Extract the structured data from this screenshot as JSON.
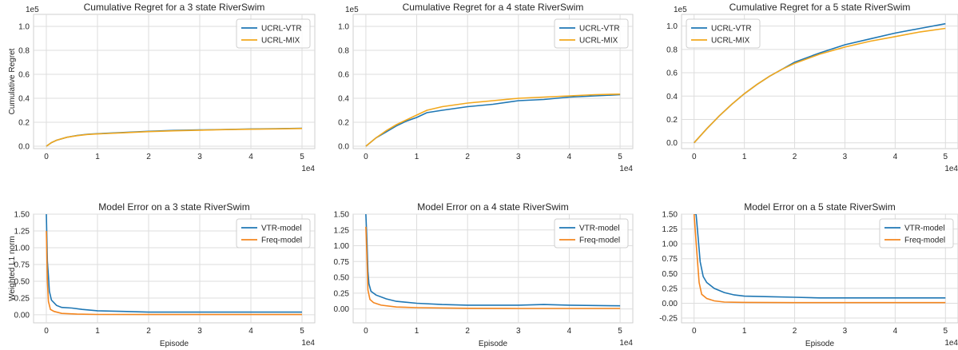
{
  "colors": {
    "series_a": "#1f77b4",
    "series_b_top": "#f2a81d",
    "series_b_bottom": "#f4861f",
    "grid": "#dddddd",
    "frame": "#cfcfcf",
    "text": "#262626"
  },
  "chart_data": [
    {
      "type": "line",
      "title": "Cumulative Regret for a 3 state RiverSwim",
      "xlabel": "",
      "ylabel": "Cumulative Regret",
      "x_multiplier": "1e4",
      "y_multiplier": "1e5",
      "xlim": [
        -0.25,
        5.25
      ],
      "ylim": [
        -0.02,
        1.1
      ],
      "xticks": [
        "0",
        "1",
        "2",
        "3",
        "4",
        "5"
      ],
      "yticks": [
        "0.0",
        "0.2",
        "0.4",
        "0.6",
        "0.8",
        "1.0"
      ],
      "legend_position": "top-right",
      "series": [
        {
          "name": "UCRL-VTR",
          "color": "#1f77b4",
          "points": [
            [
              0,
              0
            ],
            [
              0.1,
              0.03
            ],
            [
              0.2,
              0.05
            ],
            [
              0.4,
              0.075
            ],
            [
              0.6,
              0.09
            ],
            [
              0.8,
              0.1
            ],
            [
              1,
              0.105
            ],
            [
              1.5,
              0.115
            ],
            [
              2,
              0.125
            ],
            [
              2.5,
              0.132
            ],
            [
              3,
              0.136
            ],
            [
              3.5,
              0.14
            ],
            [
              4,
              0.144
            ],
            [
              4.5,
              0.147
            ],
            [
              5,
              0.15
            ]
          ]
        },
        {
          "name": "UCRL-MIX",
          "color": "#f2a81d",
          "points": [
            [
              0,
              0
            ],
            [
              0.1,
              0.03
            ],
            [
              0.2,
              0.05
            ],
            [
              0.4,
              0.075
            ],
            [
              0.6,
              0.088
            ],
            [
              0.8,
              0.098
            ],
            [
              1,
              0.103
            ],
            [
              1.5,
              0.112
            ],
            [
              2,
              0.122
            ],
            [
              2.5,
              0.129
            ],
            [
              3,
              0.134
            ],
            [
              3.5,
              0.139
            ],
            [
              4,
              0.142
            ],
            [
              4.5,
              0.145
            ],
            [
              5,
              0.148
            ]
          ]
        }
      ]
    },
    {
      "type": "line",
      "title": "Cumulative Regret for a 4 state RiverSwim",
      "xlabel": "",
      "ylabel": "",
      "x_multiplier": "1e4",
      "y_multiplier": "1e5",
      "xlim": [
        -0.25,
        5.25
      ],
      "ylim": [
        -0.02,
        1.1
      ],
      "xticks": [
        "0",
        "1",
        "2",
        "3",
        "4",
        "5"
      ],
      "yticks": [
        "0.0",
        "0.2",
        "0.4",
        "0.6",
        "0.8",
        "1.0"
      ],
      "legend_position": "top-right",
      "series": [
        {
          "name": "UCRL-VTR",
          "color": "#1f77b4",
          "points": [
            [
              0,
              0
            ],
            [
              0.2,
              0.07
            ],
            [
              0.4,
              0.12
            ],
            [
              0.6,
              0.17
            ],
            [
              0.8,
              0.21
            ],
            [
              1,
              0.24
            ],
            [
              1.2,
              0.28
            ],
            [
              1.5,
              0.3
            ],
            [
              2,
              0.33
            ],
            [
              2.5,
              0.35
            ],
            [
              3,
              0.38
            ],
            [
              3.5,
              0.39
            ],
            [
              4,
              0.41
            ],
            [
              4.5,
              0.42
            ],
            [
              5,
              0.43
            ]
          ]
        },
        {
          "name": "UCRL-MIX",
          "color": "#f2a81d",
          "points": [
            [
              0,
              0
            ],
            [
              0.2,
              0.07
            ],
            [
              0.4,
              0.13
            ],
            [
              0.6,
              0.18
            ],
            [
              0.8,
              0.22
            ],
            [
              1,
              0.26
            ],
            [
              1.2,
              0.3
            ],
            [
              1.5,
              0.33
            ],
            [
              2,
              0.36
            ],
            [
              2.5,
              0.38
            ],
            [
              3,
              0.4
            ],
            [
              3.5,
              0.41
            ],
            [
              4,
              0.42
            ],
            [
              4.5,
              0.43
            ],
            [
              5,
              0.435
            ]
          ]
        }
      ]
    },
    {
      "type": "line",
      "title": "Cumulative Regret for a 5 state RiverSwim",
      "xlabel": "",
      "ylabel": "",
      "x_multiplier": "1e4",
      "y_multiplier": "1e5",
      "xlim": [
        -0.25,
        5.25
      ],
      "ylim": [
        -0.05,
        1.1
      ],
      "xticks": [
        "0",
        "1",
        "2",
        "3",
        "4",
        "5"
      ],
      "yticks": [
        "0.0",
        "0.2",
        "0.4",
        "0.6",
        "0.8",
        "1.0"
      ],
      "legend_position": "top-left",
      "series": [
        {
          "name": "UCRL-VTR",
          "color": "#1f77b4",
          "points": [
            [
              0,
              0
            ],
            [
              0.25,
              0.12
            ],
            [
              0.5,
              0.23
            ],
            [
              0.75,
              0.33
            ],
            [
              1,
              0.42
            ],
            [
              1.25,
              0.5
            ],
            [
              1.5,
              0.57
            ],
            [
              1.75,
              0.63
            ],
            [
              2,
              0.69
            ],
            [
              2.5,
              0.77
            ],
            [
              3,
              0.84
            ],
            [
              3.5,
              0.89
            ],
            [
              4,
              0.94
            ],
            [
              4.5,
              0.98
            ],
            [
              5,
              1.02
            ]
          ]
        },
        {
          "name": "UCRL-MIX",
          "color": "#f2a81d",
          "points": [
            [
              0,
              0
            ],
            [
              0.25,
              0.12
            ],
            [
              0.5,
              0.23
            ],
            [
              0.75,
              0.33
            ],
            [
              1,
              0.42
            ],
            [
              1.25,
              0.5
            ],
            [
              1.5,
              0.57
            ],
            [
              1.75,
              0.63
            ],
            [
              2,
              0.68
            ],
            [
              2.5,
              0.76
            ],
            [
              3,
              0.82
            ],
            [
              3.5,
              0.87
            ],
            [
              4,
              0.91
            ],
            [
              4.5,
              0.95
            ],
            [
              5,
              0.98
            ]
          ]
        }
      ]
    },
    {
      "type": "line",
      "title": "Model Error on a 3 state RiverSwim",
      "xlabel": "Episode",
      "ylabel": "Weighted L1 norm",
      "x_multiplier": "1e4",
      "y_multiplier": "",
      "xlim": [
        -0.25,
        5.25
      ],
      "ylim": [
        -0.12,
        1.5
      ],
      "xticks": [
        "0",
        "1",
        "2",
        "3",
        "4",
        "5"
      ],
      "yticks": [
        "0.00",
        "0.25",
        "0.50",
        "0.75",
        "1.00",
        "1.25",
        "1.50"
      ],
      "legend_position": "top-right",
      "series": [
        {
          "name": "VTR-model",
          "color": "#1f77b4",
          "points": [
            [
              0,
              1.5
            ],
            [
              0.02,
              0.8
            ],
            [
              0.04,
              0.58
            ],
            [
              0.06,
              0.35
            ],
            [
              0.1,
              0.22
            ],
            [
              0.2,
              0.14
            ],
            [
              0.3,
              0.11
            ],
            [
              0.5,
              0.1
            ],
            [
              0.7,
              0.08
            ],
            [
              1,
              0.06
            ],
            [
              1.5,
              0.05
            ],
            [
              2,
              0.04
            ],
            [
              3,
              0.04
            ],
            [
              4,
              0.04
            ],
            [
              5,
              0.04
            ]
          ]
        },
        {
          "name": "Freq-model",
          "color": "#f4861f",
          "points": [
            [
              0,
              1.25
            ],
            [
              0.02,
              0.5
            ],
            [
              0.04,
              0.2
            ],
            [
              0.08,
              0.08
            ],
            [
              0.15,
              0.05
            ],
            [
              0.3,
              0.02
            ],
            [
              0.6,
              0.01
            ],
            [
              1,
              0.005
            ],
            [
              2,
              0.004
            ],
            [
              3,
              0.004
            ],
            [
              4,
              0.004
            ],
            [
              5,
              0.004
            ]
          ]
        }
      ]
    },
    {
      "type": "line",
      "title": "Model Error on a 4 state RiverSwim",
      "xlabel": "Episode",
      "ylabel": "",
      "x_multiplier": "1e4",
      "y_multiplier": "",
      "xlim": [
        -0.25,
        5.25
      ],
      "ylim": [
        -0.22,
        1.5
      ],
      "xticks": [
        "0",
        "1",
        "2",
        "3",
        "4",
        "5"
      ],
      "yticks": [
        "0.00",
        "0.25",
        "0.50",
        "0.75",
        "1.00",
        "1.25",
        "1.50"
      ],
      "legend_position": "top-right",
      "series": [
        {
          "name": "VTR-model",
          "color": "#1f77b4",
          "points": [
            [
              0,
              1.5
            ],
            [
              0.02,
              1.1
            ],
            [
              0.04,
              0.6
            ],
            [
              0.06,
              0.4
            ],
            [
              0.1,
              0.28
            ],
            [
              0.2,
              0.22
            ],
            [
              0.4,
              0.16
            ],
            [
              0.6,
              0.12
            ],
            [
              1,
              0.09
            ],
            [
              1.5,
              0.07
            ],
            [
              2,
              0.06
            ],
            [
              3,
              0.06
            ],
            [
              3.5,
              0.07
            ],
            [
              4,
              0.06
            ],
            [
              5,
              0.05
            ]
          ]
        },
        {
          "name": "Freq-model",
          "color": "#f4861f",
          "points": [
            [
              0,
              1.3
            ],
            [
              0.02,
              0.85
            ],
            [
              0.04,
              0.3
            ],
            [
              0.08,
              0.15
            ],
            [
              0.15,
              0.1
            ],
            [
              0.3,
              0.06
            ],
            [
              0.6,
              0.03
            ],
            [
              1,
              0.02
            ],
            [
              2,
              0.01
            ],
            [
              3,
              0.008
            ],
            [
              4,
              0.008
            ],
            [
              5,
              0.008
            ]
          ]
        }
      ]
    },
    {
      "type": "line",
      "title": "Model Error on a 5 state RiverSwim",
      "xlabel": "Episode",
      "ylabel": "",
      "x_multiplier": "1e4",
      "y_multiplier": "",
      "xlim": [
        -0.25,
        5.25
      ],
      "ylim": [
        -0.33,
        1.5
      ],
      "xticks": [
        "0",
        "1",
        "2",
        "3",
        "4",
        "5"
      ],
      "yticks": [
        "-0.25",
        "0.00",
        "0.25",
        "0.50",
        "0.75",
        "1.00",
        "1.25",
        "1.50"
      ],
      "legend_position": "top-right",
      "series": [
        {
          "name": "VTR-model",
          "color": "#1f77b4",
          "points": [
            [
              0,
              1.5
            ],
            [
              0.04,
              1.5
            ],
            [
              0.08,
              1.1
            ],
            [
              0.12,
              0.7
            ],
            [
              0.18,
              0.45
            ],
            [
              0.25,
              0.35
            ],
            [
              0.4,
              0.25
            ],
            [
              0.6,
              0.18
            ],
            [
              0.8,
              0.14
            ],
            [
              1,
              0.12
            ],
            [
              1.5,
              0.11
            ],
            [
              2,
              0.1
            ],
            [
              2.5,
              0.09
            ],
            [
              3,
              0.09
            ],
            [
              4,
              0.09
            ],
            [
              5,
              0.09
            ]
          ]
        },
        {
          "name": "Freq-model",
          "color": "#f4861f",
          "points": [
            [
              0,
              1.5
            ],
            [
              0.05,
              0.9
            ],
            [
              0.1,
              0.35
            ],
            [
              0.15,
              0.15
            ],
            [
              0.25,
              0.08
            ],
            [
              0.4,
              0.04
            ],
            [
              0.6,
              0.02
            ],
            [
              1,
              0.015
            ],
            [
              2,
              0.01
            ],
            [
              3,
              0.01
            ],
            [
              4,
              0.01
            ],
            [
              5,
              0.01
            ]
          ]
        }
      ]
    }
  ]
}
